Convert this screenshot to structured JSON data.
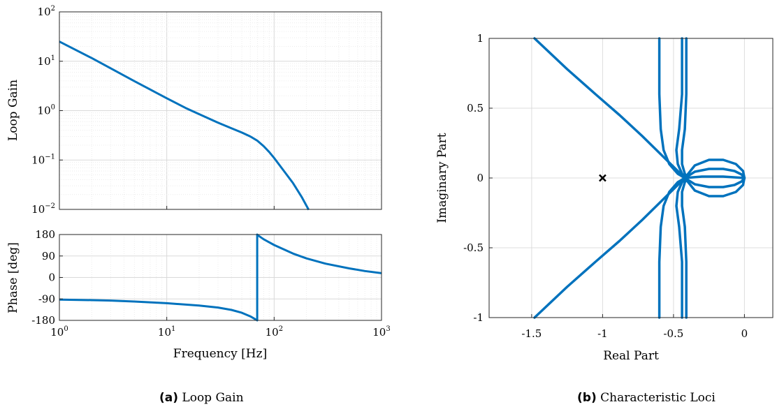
{
  "chart_data": [
    {
      "panel": "a",
      "type": "line",
      "subplots": [
        {
          "name": "magnitude",
          "ylabel": "Loop Gain",
          "xscale": "log",
          "yscale": "log",
          "xlim": [
            1,
            1000
          ],
          "ylim": [
            0.01,
            100
          ],
          "grid": true,
          "ytick_labels": [
            {
              "value": 0.01,
              "base": "10",
              "exp": "−2"
            },
            {
              "value": 0.1,
              "base": "10",
              "exp": "−1"
            },
            {
              "value": 1,
              "base": "10",
              "exp": "0"
            },
            {
              "value": 10,
              "base": "10",
              "exp": "1"
            },
            {
              "value": 100,
              "base": "10",
              "exp": "2"
            }
          ],
          "series": [
            {
              "color": "#0072BD",
              "x": [
                1,
                2,
                3,
                5,
                8,
                10,
                15,
                20,
                30,
                40,
                50,
                60,
                70,
                80,
                90,
                100,
                120,
                150,
                180,
                210
              ],
              "y": [
                25,
                11.6,
                7.2,
                3.95,
                2.3,
                1.78,
                1.13,
                0.85,
                0.57,
                0.44,
                0.36,
                0.3,
                0.245,
                0.19,
                0.145,
                0.11,
                0.065,
                0.034,
                0.018,
                0.0098
              ]
            }
          ]
        },
        {
          "name": "phase",
          "ylabel": "Phase [deg]",
          "xlabel": "Frequency [Hz]",
          "xscale": "log",
          "xlim": [
            1,
            1000
          ],
          "ylim": [
            -180,
            180
          ],
          "yticks": [
            -180,
            -90,
            0,
            90,
            180
          ],
          "ytick_labels": [
            "-180",
            "-90",
            "0",
            "90",
            "180"
          ],
          "grid": true,
          "xtick_labels": [
            {
              "value": 1,
              "base": "10",
              "exp": "0"
            },
            {
              "value": 10,
              "base": "10",
              "exp": "1"
            },
            {
              "value": 100,
              "base": "10",
              "exp": "2"
            },
            {
              "value": 1000,
              "base": "10",
              "exp": "3"
            }
          ],
          "series": [
            {
              "color": "#0072BD",
              "x": [
                1,
                2,
                3,
                5,
                10,
                20,
                30,
                40,
                50,
                60,
                65,
                69.5,
                69.5,
                70,
                80,
                100,
                150,
                200,
                300,
                500,
                700,
                1000
              ],
              "y": [
                -93,
                -95,
                -97,
                -101,
                -108,
                -118,
                -126,
                -136,
                -148,
                -163,
                -172,
                -180,
                180,
                178,
                160,
                136,
                100,
                80,
                58,
                38,
                27,
                18
              ]
            }
          ]
        }
      ]
    },
    {
      "panel": "b",
      "type": "line",
      "xlabel": "Real Part",
      "ylabel": "Imaginary Part",
      "xlim": [
        -1.8,
        0.2
      ],
      "ylim": [
        -1,
        1
      ],
      "xticks": [
        -1.5,
        -1,
        -0.5,
        0
      ],
      "xtick_labels": [
        "-1.5",
        "-1",
        "-0.5",
        "0"
      ],
      "yticks": [
        -1,
        -0.5,
        0,
        0.5,
        1
      ],
      "ytick_labels": [
        "-1",
        "-0.5",
        "0",
        "0.5",
        "1"
      ],
      "grid": true,
      "marker": {
        "x": -1,
        "y": 0,
        "symbol": "x",
        "color": "#000000"
      },
      "series": [
        {
          "color": "#0072BD",
          "x": [
            -1.48,
            -1.25,
            -1.05,
            -0.88,
            -0.72,
            -0.6,
            -0.5,
            -0.44,
            -0.41
          ],
          "y": [
            1,
            0.78,
            0.6,
            0.45,
            0.3,
            0.18,
            0.08,
            0.02,
            0
          ]
        },
        {
          "color": "#0072BD",
          "x": [
            -1.48,
            -1.25,
            -1.05,
            -0.88,
            -0.72,
            -0.6,
            -0.5,
            -0.44,
            -0.41
          ],
          "y": [
            -1,
            -0.78,
            -0.6,
            -0.45,
            -0.3,
            -0.18,
            -0.08,
            -0.02,
            0
          ]
        },
        {
          "color": "#0072BD",
          "x": [
            -0.6,
            -0.6,
            -0.59,
            -0.57,
            -0.53,
            -0.47,
            -0.42
          ],
          "y": [
            1,
            0.6,
            0.35,
            0.2,
            0.1,
            0.03,
            0
          ]
        },
        {
          "color": "#0072BD",
          "x": [
            -0.6,
            -0.6,
            -0.59,
            -0.57,
            -0.53,
            -0.47,
            -0.42
          ],
          "y": [
            -1,
            -0.6,
            -0.35,
            -0.2,
            -0.1,
            -0.03,
            0
          ]
        },
        {
          "color": "#0072BD",
          "x": [
            -0.44,
            -0.44,
            -0.46,
            -0.48,
            -0.47,
            -0.44,
            -0.41
          ],
          "y": [
            1,
            0.6,
            0.35,
            0.2,
            0.1,
            0.03,
            0
          ]
        },
        {
          "color": "#0072BD",
          "x": [
            -0.44,
            -0.44,
            -0.46,
            -0.48,
            -0.47,
            -0.44,
            -0.41
          ],
          "y": [
            -1,
            -0.6,
            -0.35,
            -0.2,
            -0.1,
            -0.03,
            0
          ]
        },
        {
          "color": "#0072BD",
          "x": [
            -0.41,
            -0.41,
            -0.42,
            -0.44,
            -0.44,
            -0.42,
            -0.4
          ],
          "y": [
            1,
            0.6,
            0.35,
            0.2,
            0.1,
            0.03,
            0
          ]
        },
        {
          "color": "#0072BD",
          "x": [
            -0.41,
            -0.41,
            -0.42,
            -0.44,
            -0.44,
            -0.42,
            -0.4
          ],
          "y": [
            -1,
            -0.6,
            -0.35,
            -0.2,
            -0.1,
            -0.03,
            0
          ]
        },
        {
          "color": "#0072BD",
          "x": [
            -0.42,
            -0.35,
            -0.25,
            -0.15,
            -0.06,
            -0.01,
            0,
            -0.01,
            -0.06,
            -0.15,
            -0.25,
            -0.35,
            -0.42
          ],
          "y": [
            0,
            0.09,
            0.13,
            0.13,
            0.1,
            0.05,
            0,
            -0.05,
            -0.1,
            -0.13,
            -0.13,
            -0.09,
            0
          ]
        },
        {
          "color": "#0072BD",
          "x": [
            -0.42,
            -0.35,
            -0.25,
            -0.15,
            -0.07,
            -0.02,
            0,
            -0.02,
            -0.07,
            -0.15,
            -0.25,
            -0.35,
            -0.42
          ],
          "y": [
            0,
            0.045,
            0.065,
            0.065,
            0.05,
            0.025,
            0,
            -0.025,
            -0.05,
            -0.065,
            -0.065,
            -0.045,
            0
          ]
        },
        {
          "color": "#0072BD",
          "x": [
            -0.42,
            -0.3,
            -0.15,
            0
          ],
          "y": [
            0,
            0.01,
            0.01,
            0
          ]
        }
      ]
    }
  ],
  "captions": [
    {
      "label": "(a)",
      "text": "Loop Gain"
    },
    {
      "label": "(b)",
      "text": "Characteristic Loci"
    }
  ]
}
